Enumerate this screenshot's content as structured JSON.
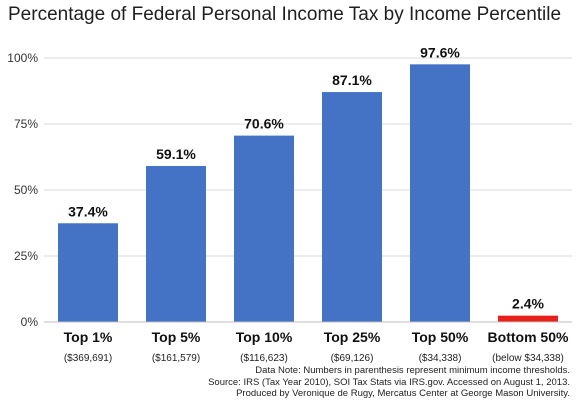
{
  "chart_data": {
    "type": "bar",
    "title": "Percentage of Federal Personal Income Tax by Income Percentile",
    "categories": [
      "Top 1%",
      "Top 5%",
      "Top 10%",
      "Top 25%",
      "Top 50%",
      "Bottom 50%"
    ],
    "sublabels": [
      "($369,691)",
      "($161,579)",
      "($116,623)",
      "($69,126)",
      "($34,338)",
      "(below $34,338)"
    ],
    "values": [
      37.4,
      59.1,
      70.6,
      87.1,
      97.6,
      2.4
    ],
    "data_labels": [
      "37.4%",
      "59.1%",
      "70.6%",
      "87.1%",
      "97.6%",
      "2.4%"
    ],
    "yticks": [
      0,
      25,
      50,
      75,
      100
    ],
    "ytick_labels": [
      "0%",
      "25%",
      "50%",
      "75%",
      "100%"
    ],
    "ylim": [
      0,
      100
    ],
    "bar_colors": [
      "#4472C4",
      "#4472C4",
      "#4472C4",
      "#4472C4",
      "#4472C4",
      "#E8201A"
    ],
    "grid": true,
    "legend": "none",
    "notes": [
      "Data Note: Numbers in parenthesis represent minimum income thresholds.",
      "Source: IRS (Tax Year 2010), SOI Tax Stats via IRS.gov. Accessed on August 1, 2013.",
      "Produced by Veronique de Rugy, Mercatus Center at George Mason University."
    ]
  }
}
